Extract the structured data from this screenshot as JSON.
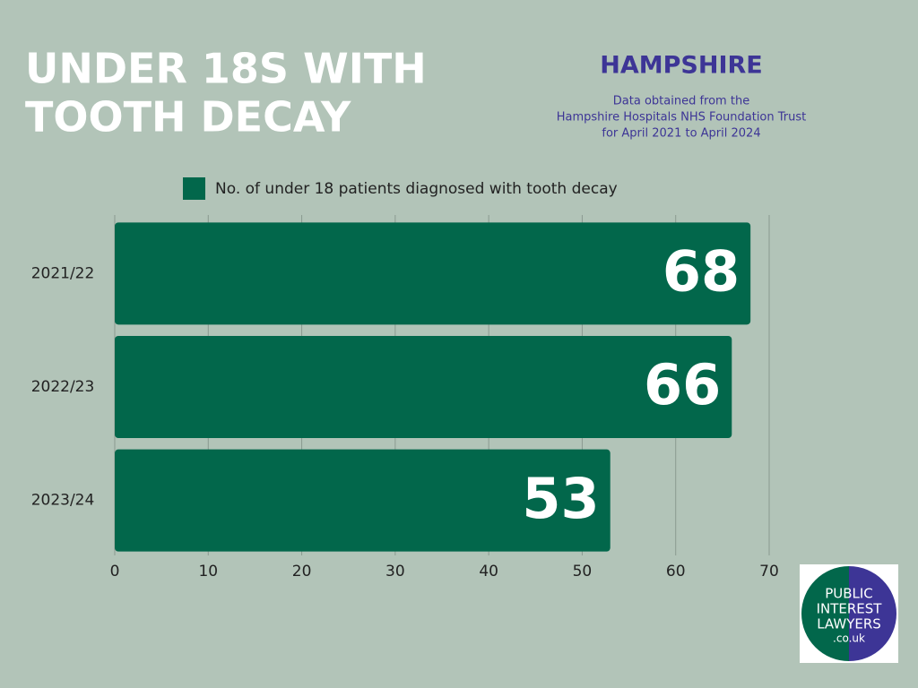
{
  "chart_data": {
    "type": "barh",
    "title_lines": [
      "UNDER 18S WITH",
      "TOOTH DECAY"
    ],
    "subtitle": "HAMPSHIRE",
    "note_lines": [
      "Data obtained from the",
      "Hampshire Hospitals NHS Foundation Trust",
      "for April 2021 to April 2024"
    ],
    "categories": [
      "2021/22",
      "2022/23",
      "2023/24"
    ],
    "series": [
      {
        "name": "No. of under 18 patients diagnosed with tooth decay",
        "color": "#02674b",
        "values": [
          68,
          66,
          53
        ]
      }
    ],
    "xlim": [
      0,
      70
    ],
    "xticks": [
      0,
      10,
      20,
      30,
      40,
      50,
      60,
      70
    ],
    "grid": true,
    "legend": "top"
  },
  "logo": {
    "lines": [
      "PUBLIC",
      "INTEREST",
      "LAWYERS",
      ".co.uk"
    ]
  }
}
